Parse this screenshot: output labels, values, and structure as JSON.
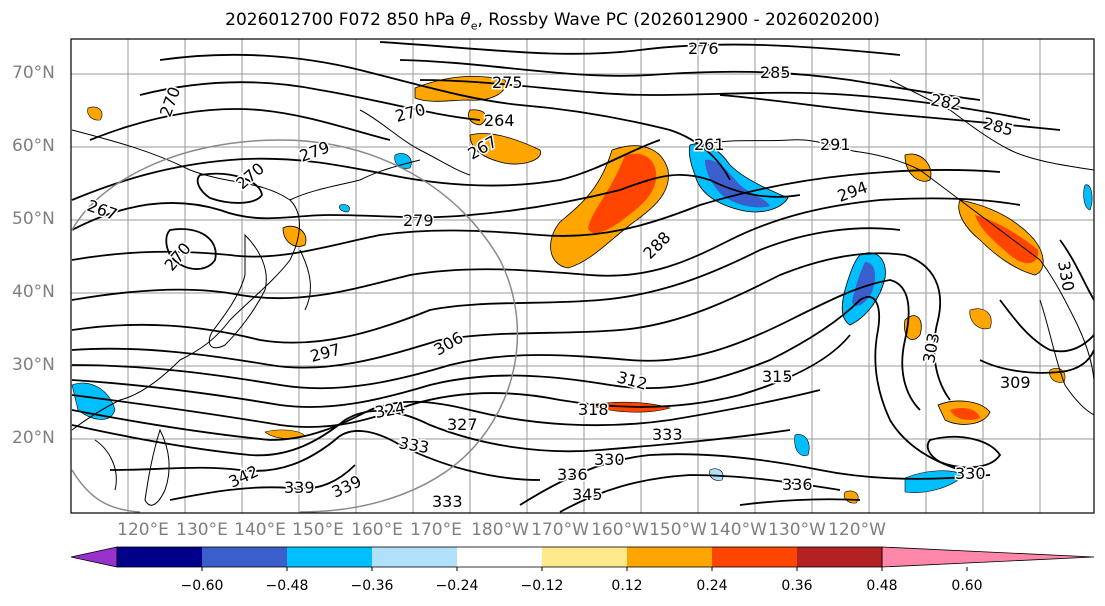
{
  "title": {
    "prefix": "2026012700 F072 850 hPa",
    "variable_symbol": "θ",
    "variable_subscript": "e",
    "suffix": ", Rossby Wave PC (2026012900 - 2026020200)"
  },
  "map": {
    "lat_labels": [
      "70°N",
      "60°N",
      "50°N",
      "40°N",
      "30°N",
      "20°N"
    ],
    "lon_labels": [
      "120°E",
      "130°E",
      "140°E",
      "150°E",
      "160°E",
      "170°E",
      "180°W",
      "170°W",
      "160°W",
      "150°W",
      "140°W",
      "130°W",
      "120°W"
    ],
    "contour_labels": [
      "276",
      "285",
      "282",
      "285",
      "270",
      "275",
      "270",
      "264",
      "267",
      "261",
      "291",
      "279",
      "270",
      "267",
      "279",
      "294",
      "270",
      "288",
      "297",
      "306",
      "312",
      "315",
      "324",
      "327",
      "318",
      "333",
      "330",
      "333",
      "336",
      "342",
      "339",
      "339",
      "345",
      "333",
      "336",
      "330",
      "309",
      "303",
      "330"
    ]
  },
  "colorbar": {
    "ticks": [
      "−0.60",
      "−0.48",
      "−0.36",
      "−0.24",
      "−0.12",
      "0.12",
      "0.24",
      "0.36",
      "0.48",
      "0.60"
    ],
    "colors": [
      "#9932CC",
      "#00008B",
      "#3A5FCD",
      "#00BFFF",
      "#B0E0FA",
      "#FFFFFF",
      "#FFE98A",
      "#FFA500",
      "#FF4500",
      "#B22222",
      "#FF88AA"
    ]
  }
}
